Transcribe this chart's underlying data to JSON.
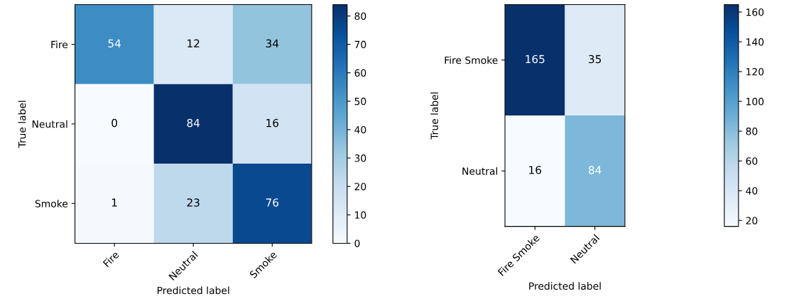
{
  "chart_data": [
    {
      "type": "heatmap",
      "xlabel": "Predicted label",
      "ylabel": "True label",
      "categories": [
        "Fire",
        "Neutral",
        "Smoke"
      ],
      "y_categories": [
        "Fire",
        "Neutral",
        "Smoke"
      ],
      "cells": [
        [
          54,
          12,
          34
        ],
        [
          0,
          84,
          16
        ],
        [
          1,
          23,
          76
        ]
      ],
      "data_labels": true,
      "clim": [
        0,
        84
      ],
      "cticks": [
        0,
        10,
        20,
        30,
        40,
        50,
        60,
        70,
        80
      ],
      "grid": false
    },
    {
      "type": "heatmap",
      "xlabel": "Predicted label",
      "ylabel": "True label",
      "categories": [
        "Fire Smoke",
        "Neutral"
      ],
      "y_categories": [
        "Fire Smoke",
        "Neutral"
      ],
      "cells": [
        [
          165,
          35
        ],
        [
          16,
          84
        ]
      ],
      "data_labels": true,
      "clim": [
        16,
        165
      ],
      "cticks": [
        20,
        40,
        60,
        80,
        100,
        120,
        140,
        160
      ],
      "grid": false
    }
  ]
}
